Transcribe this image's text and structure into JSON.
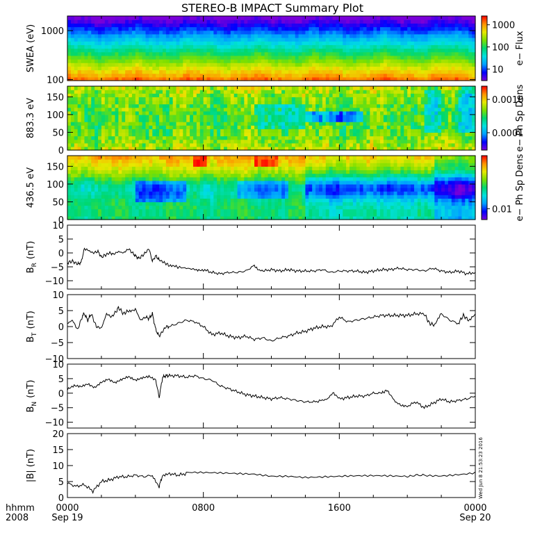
{
  "title": "STEREO-B IMPACT Summary Plot",
  "timestamp": "Wed Jun 8 21:53:23 2016",
  "time_axis": {
    "row_labels": [
      "hhmm",
      "2008"
    ],
    "ticks": [
      {
        "hours": 0,
        "line1": "0000",
        "line2": "Sep 19"
      },
      {
        "hours": 8,
        "line1": "0800",
        "line2": ""
      },
      {
        "hours": 16,
        "line1": "1600",
        "line2": ""
      },
      {
        "hours": 24,
        "line1": "0000",
        "line2": "Sep 20"
      }
    ],
    "minor_step_hours": 2
  },
  "colorbar_gradient": [
    "#7a00d8",
    "#0000ff",
    "#00a0ff",
    "#00e0e0",
    "#00d870",
    "#7ce000",
    "#e8e800",
    "#ff9000",
    "#ff0000"
  ],
  "chart_data": [
    {
      "type": "heatmap",
      "id": "swea",
      "ylabel": "SWEA (eV)",
      "yscale": "log",
      "ylim": [
        95,
        2000
      ],
      "yticks": [
        {
          "v": 1000,
          "l": "1000"
        },
        {
          "v": 100,
          "l": "100"
        }
      ],
      "cbar_label": "e− Flux",
      "cbar_scale": "log",
      "cbar_range": [
        3,
        2500
      ],
      "cbar_ticks": [
        {
          "v": 1000,
          "l": "1000"
        },
        {
          "v": 100,
          "l": "100"
        },
        {
          "v": 10,
          "l": "10"
        }
      ],
      "pattern": "Energy-dependent electron flux: highest (red/orange) near 100 eV, decreasing to green around 300 eV and blue above ~1000 eV, roughly constant over the day"
    },
    {
      "type": "heatmap",
      "id": "pad883",
      "ylabel": "883.3 eV",
      "ylim": [
        0,
        180
      ],
      "yticks": [
        {
          "v": 150,
          "l": "150"
        },
        {
          "v": 100,
          "l": "100"
        },
        {
          "v": 50,
          "l": "50"
        },
        {
          "v": 0,
          "l": "0"
        }
      ],
      "cbar_label": "e− Ph Sp Dens",
      "cbar_scale": "log",
      "cbar_range": [
        3e-05,
        0.0025
      ],
      "cbar_ticks": [
        {
          "v": 0.001,
          "l": "0.0010"
        },
        {
          "v": 0.0001,
          "l": "0.0001"
        }
      ],
      "pattern": "Pitch-angle distribution mostly green/yellow with stronger values near 0 and 180 degrees; blue depletion around 90 degrees between 1400 and 2400"
    },
    {
      "type": "heatmap",
      "id": "pad436",
      "ylabel": "436.5 eV",
      "ylim": [
        0,
        180
      ],
      "yticks": [
        {
          "v": 150,
          "l": "150"
        },
        {
          "v": 100,
          "l": "100"
        },
        {
          "v": 50,
          "l": "50"
        },
        {
          "v": 0,
          "l": "0"
        }
      ],
      "cbar_label": "e− Ph Sp Dens",
      "cbar_scale": "log",
      "cbar_range": [
        0.006,
        0.12
      ],
      "cbar_ticks": [
        {
          "v": 0.01,
          "l": "0.01"
        }
      ],
      "pattern": "Strong field-aligned beam near 180 degrees (red around 0700 and 1100); blue depletion near 90 degrees, strongest after 1400"
    },
    {
      "type": "line",
      "id": "br",
      "ylabel": "B",
      "ylabel_sub": "R",
      "ylabel_unit": "(nT)",
      "ylim": [
        -13,
        10
      ],
      "yticks": [
        {
          "v": 10,
          "l": "10"
        },
        {
          "v": 5,
          "l": "5"
        },
        {
          "v": 0,
          "l": "0"
        },
        {
          "v": -5,
          "l": "−5"
        },
        {
          "v": -10,
          "l": "−10"
        }
      ],
      "x": [
        0,
        0.3,
        0.6,
        0.8,
        1.0,
        1.2,
        1.5,
        1.8,
        2.0,
        2.3,
        2.5,
        2.7,
        3.0,
        3.3,
        3.6,
        3.9,
        4.0,
        4.2,
        4.5,
        4.8,
        5.0,
        5.2,
        5.4,
        5.7,
        6.0,
        6.4,
        7.0,
        7.6,
        8.0,
        8.5,
        9.0,
        9.5,
        10.0,
        10.5,
        11.0,
        11.2,
        11.5,
        12.0,
        12.5,
        13.0,
        13.5,
        14.0,
        14.5,
        15.0,
        15.5,
        16.0,
        16.5,
        17.0,
        17.5,
        18.0,
        18.5,
        19.0,
        19.5,
        20.0,
        20.5,
        21.0,
        21.5,
        22.0,
        22.5,
        23.0,
        23.5,
        24.0
      ],
      "y": [
        -3.5,
        -3,
        -4,
        -3.5,
        1.5,
        1,
        0,
        0.5,
        -1.5,
        -0.5,
        0,
        -0.5,
        0.5,
        0,
        1.5,
        -0.5,
        -1,
        -2,
        -0.5,
        1.5,
        -3,
        -1,
        -2.5,
        -3.5,
        -4.5,
        -5,
        -5.5,
        -6,
        -6,
        -7,
        -7.5,
        -7,
        -7,
        -6.5,
        -4.5,
        -6,
        -6.5,
        -6,
        -6.5,
        -6,
        -6.5,
        -6.5,
        -6.5,
        -6,
        -7,
        -6.5,
        -6.5,
        -6.5,
        -7,
        -6.5,
        -6,
        -6,
        -5.5,
        -6,
        -6,
        -6.5,
        -5.5,
        -6.5,
        -7,
        -6.5,
        -7.5,
        -7
      ]
    },
    {
      "type": "line",
      "id": "bt",
      "ylabel": "B",
      "ylabel_sub": "T",
      "ylabel_unit": "(nT)",
      "ylim": [
        -10,
        10
      ],
      "yticks": [
        {
          "v": 10,
          "l": "10"
        },
        {
          "v": 5,
          "l": "5"
        },
        {
          "v": 0,
          "l": "0"
        },
        {
          "v": -5,
          "l": "−5"
        },
        {
          "v": -10,
          "l": "−10"
        }
      ],
      "x": [
        0,
        0.3,
        0.6,
        0.9,
        1.0,
        1.2,
        1.4,
        1.7,
        2.0,
        2.3,
        2.6,
        2.9,
        3.0,
        3.3,
        3.6,
        4.0,
        4.3,
        4.6,
        4.8,
        5.0,
        5.2,
        5.4,
        5.6,
        5.8,
        6.0,
        6.5,
        7.0,
        7.5,
        8.0,
        8.5,
        9.0,
        9.5,
        10.0,
        10.5,
        11.0,
        11.5,
        12.0,
        12.5,
        13.0,
        13.5,
        14.0,
        14.5,
        15.0,
        15.5,
        16.0,
        16.5,
        17.0,
        17.5,
        18.0,
        18.5,
        19.0,
        19.5,
        20.0,
        20.5,
        21.0,
        21.3,
        21.6,
        22.0,
        22.5,
        23.0,
        23.3,
        23.6,
        24.0
      ],
      "y": [
        1,
        2,
        -1,
        3.5,
        4,
        2,
        4,
        0,
        -0.5,
        4,
        3,
        5,
        6,
        4,
        5,
        5.5,
        2,
        3,
        2.5,
        4,
        -1,
        -3,
        -1.5,
        0,
        0,
        1,
        2,
        1.5,
        0,
        -2.5,
        -2,
        -3,
        -3.5,
        -3,
        -4,
        -3.5,
        -4.5,
        -3.5,
        -3,
        -2,
        -1.5,
        -0.5,
        0,
        0,
        3,
        1.5,
        2,
        2.5,
        3,
        3.5,
        3.5,
        3.5,
        3.5,
        4,
        4,
        1,
        0.5,
        4,
        2,
        1,
        3.5,
        2,
        4
      ]
    },
    {
      "type": "line",
      "id": "bn",
      "ylabel": "B",
      "ylabel_sub": "N",
      "ylabel_unit": "(nT)",
      "ylim": [
        -12,
        10
      ],
      "yticks": [
        {
          "v": 10,
          "l": "10"
        },
        {
          "v": 5,
          "l": "5"
        },
        {
          "v": 0,
          "l": "0"
        },
        {
          "v": -5,
          "l": "−5"
        },
        {
          "v": -10,
          "l": "−10"
        }
      ],
      "x": [
        0,
        0.4,
        0.8,
        1.2,
        1.6,
        2.0,
        2.4,
        2.8,
        3.2,
        3.6,
        4.0,
        4.4,
        4.8,
        5.2,
        5.4,
        5.6,
        5.8,
        6.0,
        6.5,
        7.0,
        7.5,
        8.0,
        8.5,
        9.0,
        9.5,
        10.0,
        10.5,
        11.0,
        11.5,
        12.0,
        12.5,
        13.0,
        13.5,
        14.0,
        14.5,
        15.0,
        15.3,
        15.6,
        16.0,
        16.5,
        17.0,
        17.5,
        18.0,
        18.5,
        18.8,
        19.0,
        19.3,
        19.6,
        20.0,
        20.5,
        21.0,
        21.5,
        22.0,
        22.5,
        23.0,
        23.5,
        24.0
      ],
      "y": [
        1.5,
        2.5,
        2,
        3,
        2,
        4,
        5,
        3.5,
        4.5,
        5.5,
        4.5,
        5.5,
        6,
        4.5,
        -1.5,
        5.5,
        6,
        6,
        6,
        5.5,
        6,
        5,
        4.5,
        2.5,
        1.5,
        0.5,
        -0.5,
        -1,
        -1.5,
        -2,
        -1.5,
        -2,
        -2.5,
        -3,
        -3,
        -2.5,
        -2,
        0,
        -2,
        -1.5,
        -1,
        -1,
        0,
        0,
        1,
        -0.5,
        -3,
        -4,
        -4.5,
        -3,
        -5,
        -3.5,
        -2,
        -3,
        -2.5,
        -2,
        -1
      ]
    },
    {
      "type": "line",
      "id": "bmag",
      "ylabel": "|B| (nT)",
      "ylim": [
        0,
        20
      ],
      "yticks": [
        {
          "v": 20,
          "l": "20"
        },
        {
          "v": 15,
          "l": "15"
        },
        {
          "v": 10,
          "l": "10"
        },
        {
          "v": 5,
          "l": "5"
        },
        {
          "v": 0,
          "l": "0"
        }
      ],
      "x": [
        0,
        0.5,
        1.0,
        1.5,
        2.0,
        2.5,
        3.0,
        3.5,
        4.0,
        4.5,
        5.0,
        5.4,
        5.6,
        6.0,
        6.5,
        7.0,
        8.0,
        9.0,
        10.0,
        11.0,
        12.0,
        13.0,
        14.0,
        15.0,
        16.0,
        17.0,
        18.0,
        19.0,
        20.0,
        20.5,
        21.0,
        22.0,
        23.0,
        24.0
      ],
      "y": [
        4.5,
        3.5,
        4,
        2,
        5,
        5.5,
        6.5,
        6.5,
        7,
        6.5,
        7,
        3.5,
        7,
        7.5,
        7,
        7.5,
        7.5,
        7.5,
        7.5,
        7.5,
        7,
        7,
        6.5,
        6.5,
        6.5,
        6.5,
        6.5,
        6.5,
        6.5,
        7,
        7,
        7,
        7.5,
        8
      ]
    }
  ]
}
